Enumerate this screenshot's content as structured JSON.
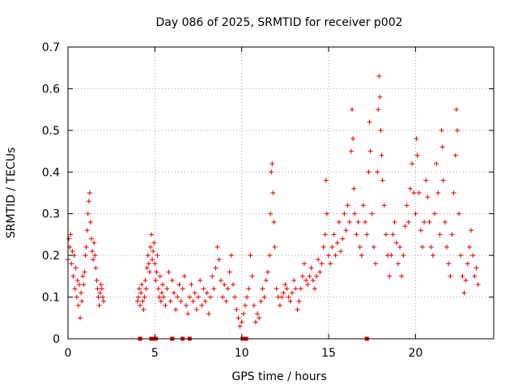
{
  "chart_data": {
    "type": "scatter",
    "title": "Day 086 of 2025, SRMTID for receiver p002",
    "xlabel": "GPS time / hours",
    "ylabel": "SRMTID / TECUs",
    "xlim": [
      0,
      24.5
    ],
    "ylim": [
      0,
      0.7
    ],
    "xticks": [
      0,
      5,
      10,
      15,
      20
    ],
    "xtick_labels": [
      "0",
      "5",
      "10",
      "15",
      "20"
    ],
    "yticks": [
      0,
      0.1,
      0.2,
      0.3,
      0.4,
      0.5,
      0.6,
      0.7
    ],
    "ytick_labels": [
      "0",
      "0.1",
      "0.2",
      "0.3",
      "0.4",
      "0.5",
      "0.6",
      "0.7"
    ],
    "grid": true,
    "marker": "plus",
    "color": "#e00000",
    "series": [
      {
        "name": "SRMTID",
        "points": [
          [
            0.0,
            0.19
          ],
          [
            0.05,
            0.24
          ],
          [
            0.1,
            0.22
          ],
          [
            0.15,
            0.25
          ],
          [
            0.2,
            0.18
          ],
          [
            0.25,
            0.21
          ],
          [
            0.3,
            0.15
          ],
          [
            0.35,
            0.2
          ],
          [
            0.4,
            0.12
          ],
          [
            0.45,
            0.17
          ],
          [
            0.5,
            0.1
          ],
          [
            0.55,
            0.14
          ],
          [
            0.6,
            0.08
          ],
          [
            0.65,
            0.13
          ],
          [
            0.7,
            0.05
          ],
          [
            0.75,
            0.11
          ],
          [
            0.8,
            0.09
          ],
          [
            0.85,
            0.15
          ],
          [
            0.9,
            0.13
          ],
          [
            0.95,
            0.16
          ],
          [
            1.0,
            0.2
          ],
          [
            1.05,
            0.22
          ],
          [
            1.1,
            0.26
          ],
          [
            1.15,
            0.3
          ],
          [
            1.2,
            0.33
          ],
          [
            1.25,
            0.35
          ],
          [
            1.3,
            0.28
          ],
          [
            1.35,
            0.24
          ],
          [
            1.4,
            0.21
          ],
          [
            1.45,
            0.19
          ],
          [
            1.5,
            0.23
          ],
          [
            1.55,
            0.2
          ],
          [
            1.6,
            0.17
          ],
          [
            1.65,
            0.14
          ],
          [
            1.7,
            0.12
          ],
          [
            1.75,
            0.1
          ],
          [
            1.8,
            0.08
          ],
          [
            1.85,
            0.11
          ],
          [
            1.9,
            0.13
          ],
          [
            1.95,
            0.12
          ],
          [
            2.0,
            0.1
          ],
          [
            2.05,
            0.09
          ],
          [
            4.0,
            0.09
          ],
          [
            4.05,
            0.1
          ],
          [
            4.1,
            0.12
          ],
          [
            4.15,
            0.08
          ],
          [
            4.2,
            0.11
          ],
          [
            4.25,
            0.13
          ],
          [
            4.3,
            0.09
          ],
          [
            4.35,
            0.07
          ],
          [
            4.4,
            0.1
          ],
          [
            4.45,
            0.14
          ],
          [
            4.5,
            0.12
          ],
          [
            4.55,
            0.17
          ],
          [
            4.6,
            0.2
          ],
          [
            4.65,
            0.18
          ],
          [
            4.7,
            0.16
          ],
          [
            4.75,
            0.22
          ],
          [
            4.8,
            0.25
          ],
          [
            4.85,
            0.19
          ],
          [
            4.9,
            0.21
          ],
          [
            4.95,
            0.23
          ],
          [
            5.0,
            0.18
          ],
          [
            5.05,
            0.14
          ],
          [
            5.1,
            0.16
          ],
          [
            5.15,
            0.2
          ],
          [
            5.2,
            0.12
          ],
          [
            5.25,
            0.1
          ],
          [
            5.3,
            0.15
          ],
          [
            5.35,
            0.09
          ],
          [
            5.4,
            0.11
          ],
          [
            5.45,
            0.13
          ],
          [
            5.5,
            0.1
          ],
          [
            5.6,
            0.08
          ],
          [
            5.7,
            0.12
          ],
          [
            5.8,
            0.16
          ],
          [
            5.9,
            0.09
          ],
          [
            6.0,
            0.14
          ],
          [
            6.1,
            0.11
          ],
          [
            6.2,
            0.07
          ],
          [
            6.3,
            0.1
          ],
          [
            6.4,
            0.13
          ],
          [
            6.5,
            0.09
          ],
          [
            6.6,
            0.12
          ],
          [
            6.7,
            0.15
          ],
          [
            6.8,
            0.08
          ],
          [
            6.9,
            0.06
          ],
          [
            7.0,
            0.1
          ],
          [
            7.1,
            0.13
          ],
          [
            7.2,
            0.09
          ],
          [
            7.3,
            0.11
          ],
          [
            7.4,
            0.07
          ],
          [
            7.5,
            0.1
          ],
          [
            7.6,
            0.14
          ],
          [
            7.7,
            0.08
          ],
          [
            7.8,
            0.12
          ],
          [
            7.9,
            0.09
          ],
          [
            8.0,
            0.11
          ],
          [
            8.1,
            0.06
          ],
          [
            8.2,
            0.1
          ],
          [
            8.3,
            0.15
          ],
          [
            8.4,
            0.12
          ],
          [
            8.5,
            0.17
          ],
          [
            8.6,
            0.22
          ],
          [
            8.7,
            0.19
          ],
          [
            8.8,
            0.14
          ],
          [
            8.9,
            0.1
          ],
          [
            9.0,
            0.13
          ],
          [
            9.1,
            0.09
          ],
          [
            9.2,
            0.12
          ],
          [
            9.3,
            0.16
          ],
          [
            9.4,
            0.2
          ],
          [
            9.5,
            0.13
          ],
          [
            9.6,
            0.1
          ],
          [
            9.7,
            0.07
          ],
          [
            9.8,
            0.05
          ],
          [
            9.9,
            0.03
          ],
          [
            10.0,
            0.04
          ],
          [
            10.1,
            0.06
          ],
          [
            10.2,
            0.08
          ],
          [
            10.3,
            0.1
          ],
          [
            10.4,
            0.12
          ],
          [
            10.5,
            0.2
          ],
          [
            10.6,
            0.15
          ],
          [
            10.7,
            0.08
          ],
          [
            10.8,
            0.04
          ],
          [
            10.9,
            0.06
          ],
          [
            11.0,
            0.05
          ],
          [
            11.1,
            0.09
          ],
          [
            11.2,
            0.12
          ],
          [
            11.3,
            0.1
          ],
          [
            11.4,
            0.14
          ],
          [
            11.5,
            0.16
          ],
          [
            11.6,
            0.2
          ],
          [
            11.65,
            0.3
          ],
          [
            11.7,
            0.4
          ],
          [
            11.75,
            0.42
          ],
          [
            11.8,
            0.35
          ],
          [
            11.85,
            0.28
          ],
          [
            11.9,
            0.22
          ],
          [
            12.0,
            0.12
          ],
          [
            12.1,
            0.1
          ],
          [
            12.2,
            0.08
          ],
          [
            12.3,
            0.1
          ],
          [
            12.4,
            0.11
          ],
          [
            12.5,
            0.13
          ],
          [
            12.6,
            0.12
          ],
          [
            12.7,
            0.1
          ],
          [
            12.8,
            0.09
          ],
          [
            12.9,
            0.11
          ],
          [
            13.0,
            0.14
          ],
          [
            13.1,
            0.12
          ],
          [
            13.2,
            0.07
          ],
          [
            13.3,
            0.09
          ],
          [
            13.4,
            0.12
          ],
          [
            13.5,
            0.15
          ],
          [
            13.6,
            0.18
          ],
          [
            13.7,
            0.14
          ],
          [
            13.8,
            0.13
          ],
          [
            13.9,
            0.15
          ],
          [
            14.0,
            0.17
          ],
          [
            14.1,
            0.14
          ],
          [
            14.2,
            0.12
          ],
          [
            14.3,
            0.15
          ],
          [
            14.4,
            0.19
          ],
          [
            14.5,
            0.16
          ],
          [
            14.6,
            0.18
          ],
          [
            14.7,
            0.22
          ],
          [
            14.8,
            0.25
          ],
          [
            14.85,
            0.38
          ],
          [
            14.9,
            0.3
          ],
          [
            15.0,
            0.2
          ],
          [
            15.1,
            0.18
          ],
          [
            15.2,
            0.22
          ],
          [
            15.3,
            0.25
          ],
          [
            15.4,
            0.2
          ],
          [
            15.5,
            0.23
          ],
          [
            15.6,
            0.28
          ],
          [
            15.7,
            0.21
          ],
          [
            15.8,
            0.24
          ],
          [
            15.9,
            0.3
          ],
          [
            16.0,
            0.26
          ],
          [
            16.1,
            0.32
          ],
          [
            16.2,
            0.28
          ],
          [
            16.3,
            0.45
          ],
          [
            16.35,
            0.55
          ],
          [
            16.4,
            0.48
          ],
          [
            16.45,
            0.36
          ],
          [
            16.5,
            0.3
          ],
          [
            16.6,
            0.25
          ],
          [
            16.7,
            0.28
          ],
          [
            16.8,
            0.22
          ],
          [
            16.9,
            0.2
          ],
          [
            17.0,
            0.32
          ],
          [
            17.1,
            0.28
          ],
          [
            17.2,
            0.25
          ],
          [
            17.3,
            0.4
          ],
          [
            17.35,
            0.52
          ],
          [
            17.4,
            0.45
          ],
          [
            17.5,
            0.3
          ],
          [
            17.6,
            0.22
          ],
          [
            17.7,
            0.18
          ],
          [
            17.8,
            0.4
          ],
          [
            17.85,
            0.55
          ],
          [
            17.9,
            0.63
          ],
          [
            17.95,
            0.58
          ],
          [
            18.0,
            0.5
          ],
          [
            18.05,
            0.44
          ],
          [
            18.1,
            0.38
          ],
          [
            18.2,
            0.32
          ],
          [
            18.3,
            0.25
          ],
          [
            18.4,
            0.2
          ],
          [
            18.5,
            0.15
          ],
          [
            18.6,
            0.2
          ],
          [
            18.7,
            0.25
          ],
          [
            18.8,
            0.28
          ],
          [
            18.9,
            0.23
          ],
          [
            19.0,
            0.18
          ],
          [
            19.1,
            0.22
          ],
          [
            19.2,
            0.15
          ],
          [
            19.3,
            0.2
          ],
          [
            19.4,
            0.27
          ],
          [
            19.5,
            0.32
          ],
          [
            19.6,
            0.28
          ],
          [
            19.7,
            0.36
          ],
          [
            19.8,
            0.42
          ],
          [
            19.9,
            0.35
          ],
          [
            20.0,
            0.3
          ],
          [
            20.05,
            0.48
          ],
          [
            20.1,
            0.44
          ],
          [
            20.2,
            0.35
          ],
          [
            20.3,
            0.26
          ],
          [
            20.4,
            0.22
          ],
          [
            20.5,
            0.28
          ],
          [
            20.6,
            0.38
          ],
          [
            20.7,
            0.34
          ],
          [
            20.8,
            0.28
          ],
          [
            20.9,
            0.22
          ],
          [
            21.0,
            0.2
          ],
          [
            21.1,
            0.3
          ],
          [
            21.2,
            0.42
          ],
          [
            21.3,
            0.35
          ],
          [
            21.4,
            0.25
          ],
          [
            21.5,
            0.5
          ],
          [
            21.55,
            0.46
          ],
          [
            21.6,
            0.38
          ],
          [
            21.7,
            0.28
          ],
          [
            21.8,
            0.22
          ],
          [
            21.9,
            0.18
          ],
          [
            22.0,
            0.15
          ],
          [
            22.1,
            0.25
          ],
          [
            22.2,
            0.35
          ],
          [
            22.3,
            0.44
          ],
          [
            22.35,
            0.55
          ],
          [
            22.4,
            0.5
          ],
          [
            22.5,
            0.3
          ],
          [
            22.6,
            0.2
          ],
          [
            22.7,
            0.15
          ],
          [
            22.8,
            0.11
          ],
          [
            22.9,
            0.14
          ],
          [
            23.0,
            0.18
          ],
          [
            23.1,
            0.22
          ],
          [
            23.2,
            0.26
          ],
          [
            23.3,
            0.2
          ],
          [
            23.4,
            0.15
          ],
          [
            23.5,
            0.17
          ],
          [
            23.6,
            0.13
          ]
        ]
      }
    ],
    "gap_markers": [
      4.15,
      4.8,
      4.95,
      5.05,
      6.0,
      6.6,
      7.0,
      10.05,
      10.15,
      10.25,
      17.2
    ]
  }
}
